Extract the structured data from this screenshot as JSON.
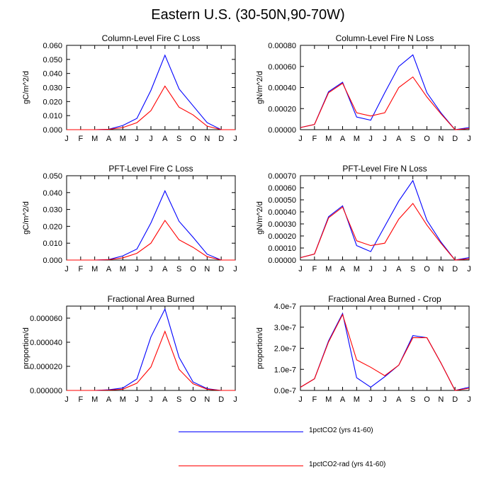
{
  "title": "Eastern U.S. (30-50N,90-70W)",
  "colors": {
    "series1": "#0000ff",
    "series2": "#ff0000"
  },
  "legend": {
    "series1_label": "1pctCO2 (yrs 41-60)",
    "series2_label": "1pctCO2-rad (yrs 41-60)"
  },
  "chart_data": [
    {
      "type": "line",
      "title": "Column-Level Fire C Loss",
      "ylabel": "gC/m^2/d",
      "categories": [
        "J",
        "F",
        "M",
        "A",
        "M",
        "J",
        "J",
        "A",
        "S",
        "O",
        "N",
        "D",
        "J"
      ],
      "ylim": [
        0,
        0.06
      ],
      "yticks": [
        "0.000",
        "0.010",
        "0.020",
        "0.030",
        "0.040",
        "0.050",
        "0.060"
      ],
      "series": [
        {
          "name": "1pctCO2 (yrs 41-60)",
          "values": [
            0,
            0,
            0,
            0.0003,
            0.003,
            0.008,
            0.028,
            0.053,
            0.029,
            0.017,
            0.005,
            0,
            0
          ]
        },
        {
          "name": "1pctCO2-rad (yrs 41-60)",
          "values": [
            0,
            0,
            0,
            0.0002,
            0.0015,
            0.005,
            0.0135,
            0.031,
            0.016,
            0.0105,
            0.0025,
            0,
            0
          ]
        }
      ]
    },
    {
      "type": "line",
      "title": "Column-Level Fire N Loss",
      "ylabel": "gN/m^2/d",
      "categories": [
        "J",
        "F",
        "M",
        "A",
        "M",
        "J",
        "J",
        "A",
        "S",
        "O",
        "N",
        "D",
        "J"
      ],
      "ylim": [
        0,
        0.0008
      ],
      "yticks": [
        "0.00000",
        "0.00020",
        "0.00040",
        "0.00060",
        "0.00080"
      ],
      "series": [
        {
          "name": "1pctCO2 (yrs 41-60)",
          "values": [
            2e-05,
            5e-05,
            0.00036,
            0.00045,
            0.00012,
            9e-05,
            0.00035,
            0.0006,
            0.00071,
            0.00035,
            0.00016,
            0.0,
            2e-05
          ]
        },
        {
          "name": "1pctCO2-rad (yrs 41-60)",
          "values": [
            2e-05,
            5e-05,
            0.00035,
            0.00044,
            0.00016,
            0.00013,
            0.00016,
            0.0004,
            0.0005,
            0.00031,
            0.00015,
            0.0,
            1e-05
          ]
        }
      ]
    },
    {
      "type": "line",
      "title": "PFT-Level Fire C Loss",
      "ylabel": "gC/m^2/d",
      "categories": [
        "J",
        "F",
        "M",
        "A",
        "M",
        "J",
        "J",
        "A",
        "S",
        "O",
        "N",
        "D",
        "J"
      ],
      "ylim": [
        0,
        0.05
      ],
      "yticks": [
        "0.000",
        "0.010",
        "0.020",
        "0.030",
        "0.040",
        "0.050"
      ],
      "series": [
        {
          "name": "1pctCO2 (yrs 41-60)",
          "values": [
            0,
            0,
            0,
            0.0003,
            0.0025,
            0.0065,
            0.022,
            0.041,
            0.023,
            0.0135,
            0.0035,
            0,
            0
          ]
        },
        {
          "name": "1pctCO2-rad (yrs 41-60)",
          "values": [
            0,
            0,
            0,
            0.0002,
            0.0013,
            0.004,
            0.01,
            0.0235,
            0.012,
            0.0075,
            0.002,
            0,
            0
          ]
        }
      ]
    },
    {
      "type": "line",
      "title": "PFT-Level Fire N Loss",
      "ylabel": "gN/m^2/d",
      "categories": [
        "J",
        "F",
        "M",
        "A",
        "M",
        "J",
        "J",
        "A",
        "S",
        "O",
        "N",
        "D",
        "J"
      ],
      "ylim": [
        0,
        0.0007
      ],
      "yticks": [
        "0.00000",
        "0.00010",
        "0.00020",
        "0.00030",
        "0.00040",
        "0.00050",
        "0.00060",
        "0.00070"
      ],
      "series": [
        {
          "name": "1pctCO2 (yrs 41-60)",
          "values": [
            2e-05,
            5e-05,
            0.00036,
            0.00045,
            0.00012,
            7e-05,
            0.00028,
            0.00049,
            0.00066,
            0.00033,
            0.00015,
            0.0,
            2e-05
          ]
        },
        {
          "name": "1pctCO2-rad (yrs 41-60)",
          "values": [
            2e-05,
            5e-05,
            0.00035,
            0.00044,
            0.00016,
            0.00012,
            0.00014,
            0.00034,
            0.00047,
            0.00029,
            0.00014,
            0.0,
            1e-05
          ]
        }
      ]
    },
    {
      "type": "line",
      "title": "Fractional Area Burned",
      "ylabel": "proportion/d",
      "categories": [
        "J",
        "F",
        "M",
        "A",
        "M",
        "J",
        "J",
        "A",
        "S",
        "O",
        "N",
        "D",
        "J"
      ],
      "ylim": [
        0,
        7e-05
      ],
      "yticks": [
        "0.000000",
        "0.000020",
        "0.000040",
        "0.000060"
      ],
      "ytick_values": [
        0,
        2e-05,
        4e-05,
        6e-05
      ],
      "series": [
        {
          "name": "1pctCO2 (yrs 41-60)",
          "values": [
            0,
            0,
            0,
            5e-07,
            2e-06,
            9.5e-06,
            4.45e-05,
            6.75e-05,
            2.75e-05,
            7e-06,
            1.5e-06,
            0,
            0
          ]
        },
        {
          "name": "1pctCO2-rad (yrs 41-60)",
          "values": [
            0,
            0,
            0,
            3e-07,
            1e-06,
            6e-06,
            1.95e-05,
            4.9e-05,
            1.75e-05,
            5.5e-06,
            1e-06,
            0,
            0
          ]
        }
      ]
    },
    {
      "type": "line",
      "title": "Fractional Area Burned - Crop",
      "ylabel": "proportion/d",
      "categories": [
        "J",
        "F",
        "M",
        "A",
        "M",
        "J",
        "J",
        "A",
        "S",
        "O",
        "N",
        "D",
        "J"
      ],
      "ylim": [
        0,
        4e-07
      ],
      "yticks": [
        "0.0e-7",
        "1.0e-7",
        "2.0e-7",
        "3.0e-7",
        "4.0e-7"
      ],
      "series": [
        {
          "name": "1pctCO2 (yrs 41-60)",
          "values": [
            1.5e-08,
            5.5e-08,
            2.35e-07,
            3.65e-07,
            6e-08,
            1.5e-08,
            6.5e-08,
            1.2e-07,
            2.6e-07,
            2.5e-07,
            1.3e-07,
            0,
            1.5e-08
          ]
        },
        {
          "name": "1pctCO2-rad (yrs 41-60)",
          "values": [
            1.5e-08,
            5.5e-08,
            2.3e-07,
            3.6e-07,
            1.45e-07,
            1.1e-07,
            7e-08,
            1.2e-07,
            2.5e-07,
            2.5e-07,
            1.3e-07,
            0,
            1e-08
          ]
        }
      ]
    }
  ]
}
